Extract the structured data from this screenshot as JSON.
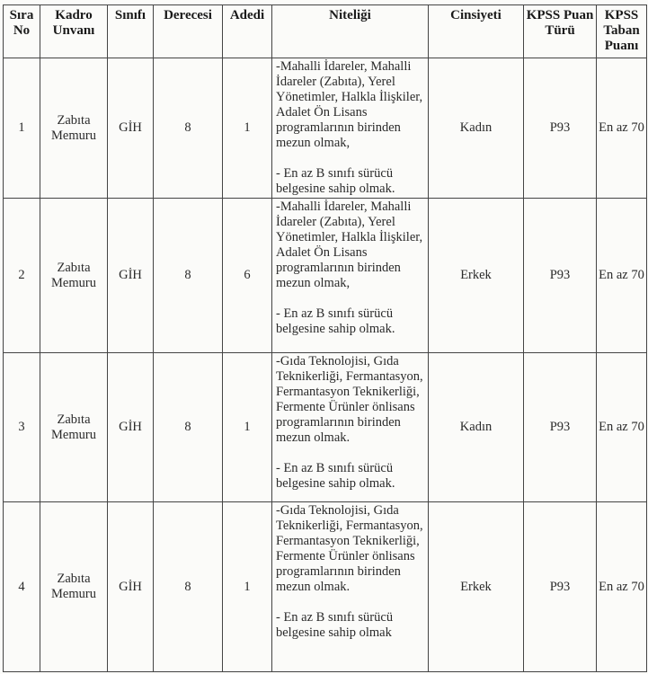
{
  "headers": [
    "Sıra No",
    "Kadro Unvanı",
    "Sınıfı",
    "Derecesi",
    "Adedi",
    "Niteliği",
    "Cinsiyeti",
    "KPSS Puan Türü",
    "KPSS Taban Puanı"
  ],
  "rows": [
    {
      "no": "1",
      "unvan": "Zabıta Memuru",
      "sinif": "GİH",
      "derece": "8",
      "adet": "1",
      "nitelik1": "-Mahalli İdareler, Mahalli İdareler (Zabıta), Yerel Yönetimler, Halkla İlişkiler, Adalet Ön Lisans programlarının birinden mezun olmak,",
      "nitelik2": "- En az B sınıfı sürücü belgesine sahip olmak.",
      "cinsiyet": "Kadın",
      "puan_turu": "P93",
      "taban": "En az 70"
    },
    {
      "no": "2",
      "unvan": "Zabıta Memuru",
      "sinif": "GİH",
      "derece": "8",
      "adet": "6",
      "nitelik1": "-Mahalli İdareler, Mahalli İdareler (Zabıta), Yerel Yönetimler, Halkla İlişkiler, Adalet Ön Lisans programlarının birinden mezun olmak,",
      "nitelik2": "- En az B sınıfı sürücü belgesine sahip olmak.",
      "cinsiyet": "Erkek",
      "puan_turu": "P93",
      "taban": "En az 70"
    },
    {
      "no": "3",
      "unvan": "Zabıta Memuru",
      "sinif": "GİH",
      "derece": "8",
      "adet": "1",
      "nitelik1": "-Gıda Teknolojisi, Gıda Teknikerliği, Fermantasyon, Fermantasyon Teknikerliği, Fermente Ürünler önlisans programlarının birinden mezun olmak.",
      "nitelik2": "- En az B sınıfı sürücü belgesine sahip olmak.",
      "cinsiyet": "Kadın",
      "puan_turu": "P93",
      "taban": "En az 70"
    },
    {
      "no": "4",
      "unvan": "Zabıta Memuru",
      "sinif": "GİH",
      "derece": "8",
      "adet": "1",
      "nitelik1": "-Gıda Teknolojisi, Gıda Teknikerliği, Fermantasyon, Fermantasyon Teknikerliği, Fermente Ürünler önlisans programlarının birinden mezun olmak.",
      "nitelik2": "- En az B sınıfı sürücü belgesine sahip olmak",
      "cinsiyet": "Erkek",
      "puan_turu": "P93",
      "taban": "En az 70"
    }
  ]
}
